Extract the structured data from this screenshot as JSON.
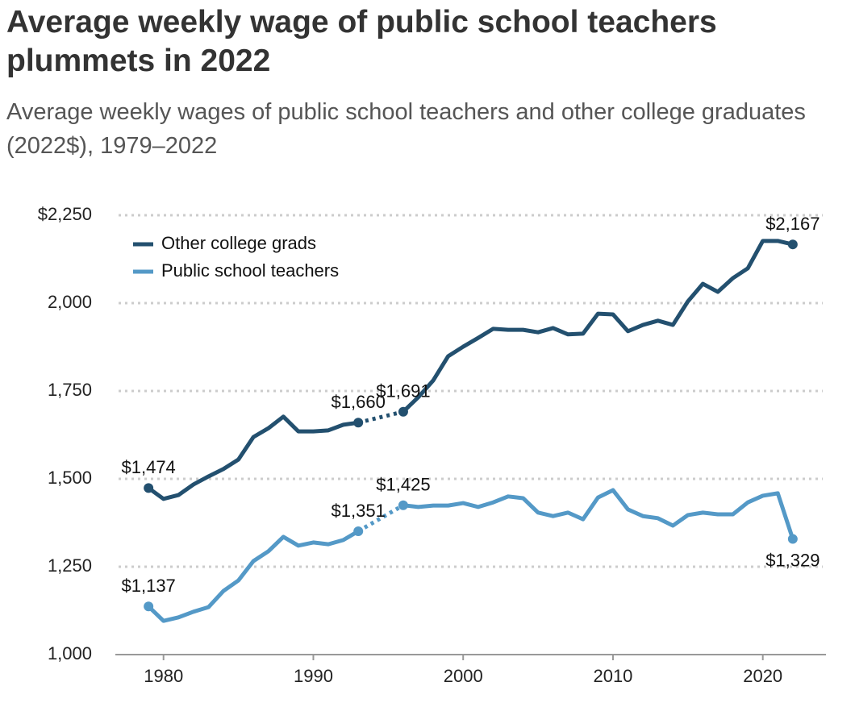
{
  "chart_data": {
    "type": "line",
    "title": "Average weekly wage of public school teachers plummets in 2022",
    "subtitle": "Average weekly wages of public school teachers and other college graduates (2022$), 1979–2022",
    "x": [
      1979,
      1980,
      1981,
      1982,
      1983,
      1984,
      1985,
      1986,
      1987,
      1988,
      1989,
      1990,
      1991,
      1992,
      1993,
      1994,
      1995,
      1996,
      1997,
      1998,
      1999,
      2000,
      2001,
      2002,
      2003,
      2004,
      2005,
      2006,
      2007,
      2008,
      2009,
      2010,
      2011,
      2012,
      2013,
      2014,
      2015,
      2016,
      2017,
      2018,
      2019,
      2020,
      2021,
      2022
    ],
    "series": [
      {
        "name": "Other college grads",
        "color": "#23506f",
        "values": [
          1474,
          1443,
          1454,
          1484,
          1507,
          1528,
          1555,
          1619,
          1644,
          1677,
          1635,
          1635,
          1638,
          1654,
          1660,
          null,
          null,
          1691,
          1732,
          1780,
          1849,
          1876,
          1901,
          1927,
          1924,
          1924,
          1917,
          1929,
          1911,
          1913,
          1970,
          1968,
          1920,
          1938,
          1950,
          1938,
          2005,
          2055,
          2032,
          2071,
          2099,
          2177,
          2177,
          2167
        ],
        "value_labels": [
          "$1,474",
          null,
          null,
          null,
          null,
          null,
          null,
          null,
          null,
          null,
          null,
          null,
          null,
          null,
          "$1,660",
          null,
          null,
          "$1,691",
          null,
          null,
          null,
          null,
          null,
          null,
          null,
          null,
          null,
          null,
          null,
          null,
          null,
          null,
          null,
          null,
          null,
          null,
          null,
          null,
          null,
          null,
          null,
          null,
          null,
          "$2,167"
        ]
      },
      {
        "name": "Public school teachers",
        "color": "#5499c7",
        "values": [
          1137,
          1096,
          1106,
          1122,
          1135,
          1181,
          1211,
          1266,
          1294,
          1335,
          1310,
          1319,
          1314,
          1326,
          1351,
          null,
          null,
          1425,
          1420,
          1424,
          1424,
          1431,
          1420,
          1433,
          1450,
          1445,
          1404,
          1394,
          1404,
          1385,
          1447,
          1468,
          1413,
          1394,
          1388,
          1367,
          1397,
          1404,
          1399,
          1399,
          1433,
          1452,
          1459,
          1329
        ],
        "value_labels": [
          "$1,137",
          null,
          null,
          null,
          null,
          null,
          null,
          null,
          null,
          null,
          null,
          null,
          null,
          null,
          "$1,351",
          null,
          null,
          "$1,425",
          null,
          null,
          null,
          null,
          null,
          null,
          null,
          null,
          null,
          null,
          null,
          null,
          null,
          null,
          null,
          null,
          null,
          null,
          null,
          null,
          null,
          null,
          null,
          null,
          null,
          "$1,329"
        ]
      }
    ],
    "xlim": [
      1977,
      2024
    ],
    "xticks": [
      1980,
      1990,
      2000,
      2010,
      2020
    ],
    "ylim": [
      1000,
      2250
    ],
    "yticks": [
      {
        "value": 1000,
        "label": "1,000"
      },
      {
        "value": 1250,
        "label": "1,250"
      },
      {
        "value": 1500,
        "label": "1,500"
      },
      {
        "value": 1750,
        "label": "1,750"
      },
      {
        "value": 2000,
        "label": "2,000"
      },
      {
        "value": 2250,
        "label": "$2,250"
      }
    ],
    "grid": true,
    "legend": "upper left"
  }
}
